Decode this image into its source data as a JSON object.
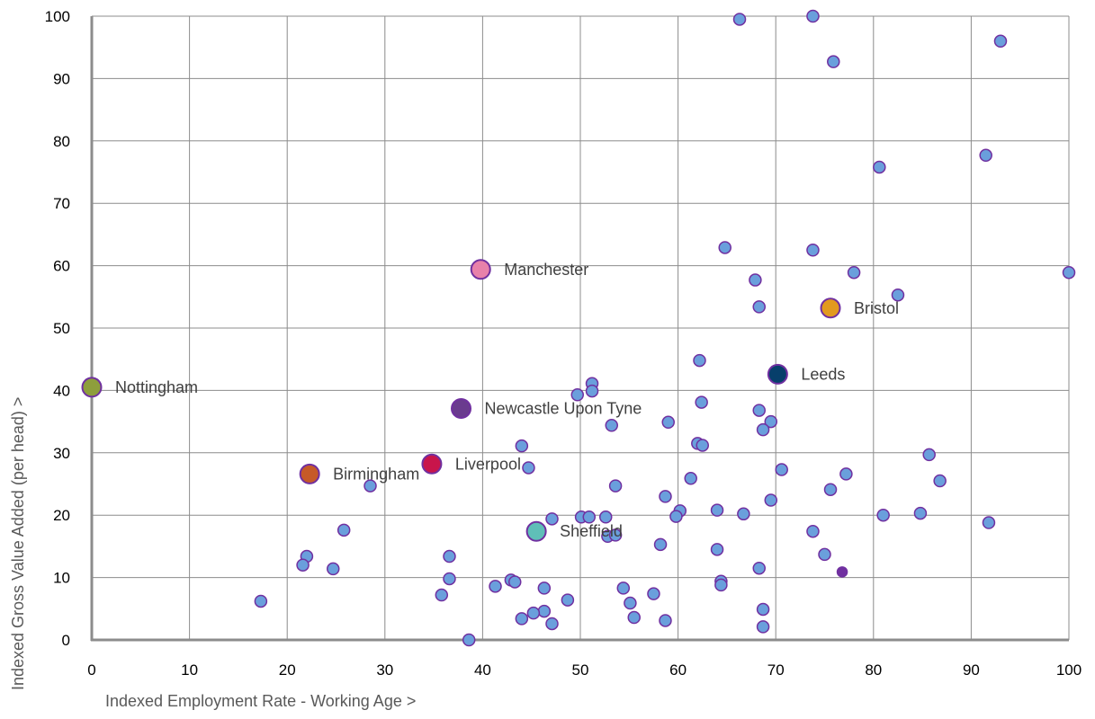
{
  "chart_data": {
    "type": "scatter",
    "xlabel": "Indexed Employment Rate - Working Age >",
    "ylabel": "Indexed Gross Value Added (per head) >",
    "xlim": [
      0,
      100
    ],
    "ylim": [
      0,
      100
    ],
    "xticks": [
      0,
      10,
      20,
      30,
      40,
      50,
      60,
      70,
      80,
      90,
      100
    ],
    "yticks": [
      0,
      10,
      20,
      30,
      40,
      50,
      60,
      70,
      80,
      90,
      100
    ],
    "grid": true,
    "default_point_color": "#6a9fdc",
    "default_point_edge_color": "#7030a0",
    "points": [
      {
        "x": 66.3,
        "y": 99.5
      },
      {
        "x": 73.8,
        "y": 100
      },
      {
        "x": 93.0,
        "y": 96.0
      },
      {
        "x": 75.9,
        "y": 92.7
      },
      {
        "x": 80.6,
        "y": 75.8
      },
      {
        "x": 91.5,
        "y": 77.7
      },
      {
        "x": 64.8,
        "y": 62.9
      },
      {
        "x": 73.8,
        "y": 62.5
      },
      {
        "x": 78.0,
        "y": 58.9
      },
      {
        "x": 100,
        "y": 58.9
      },
      {
        "x": 67.9,
        "y": 57.7
      },
      {
        "x": 82.5,
        "y": 55.3
      },
      {
        "x": 68.3,
        "y": 53.4
      },
      {
        "x": 62.2,
        "y": 44.8
      },
      {
        "x": 51.2,
        "y": 41.1
      },
      {
        "x": 49.7,
        "y": 39.3
      },
      {
        "x": 51.2,
        "y": 39.9
      },
      {
        "x": 62.4,
        "y": 38.1
      },
      {
        "x": 68.3,
        "y": 36.8
      },
      {
        "x": 59.0,
        "y": 34.9
      },
      {
        "x": 69.5,
        "y": 35.0
      },
      {
        "x": 53.2,
        "y": 34.4
      },
      {
        "x": 68.7,
        "y": 33.7
      },
      {
        "x": 44.0,
        "y": 31.1
      },
      {
        "x": 62.0,
        "y": 31.5
      },
      {
        "x": 62.5,
        "y": 31.2
      },
      {
        "x": 85.7,
        "y": 29.7
      },
      {
        "x": 44.7,
        "y": 27.6
      },
      {
        "x": 70.6,
        "y": 27.3
      },
      {
        "x": 77.2,
        "y": 26.6
      },
      {
        "x": 61.3,
        "y": 25.9
      },
      {
        "x": 86.8,
        "y": 25.5
      },
      {
        "x": 28.5,
        "y": 24.7
      },
      {
        "x": 53.6,
        "y": 24.7
      },
      {
        "x": 75.6,
        "y": 24.1
      },
      {
        "x": 58.7,
        "y": 23.0
      },
      {
        "x": 69.5,
        "y": 22.4
      },
      {
        "x": 60.2,
        "y": 20.7
      },
      {
        "x": 64.0,
        "y": 20.8
      },
      {
        "x": 66.7,
        "y": 20.2
      },
      {
        "x": 81.0,
        "y": 20.0
      },
      {
        "x": 84.8,
        "y": 20.3
      },
      {
        "x": 59.8,
        "y": 19.8
      },
      {
        "x": 47.1,
        "y": 19.4
      },
      {
        "x": 50.1,
        "y": 19.7
      },
      {
        "x": 50.9,
        "y": 19.7
      },
      {
        "x": 52.6,
        "y": 19.7
      },
      {
        "x": 91.8,
        "y": 18.8
      },
      {
        "x": 25.8,
        "y": 17.6
      },
      {
        "x": 73.8,
        "y": 17.4
      },
      {
        "x": 52.8,
        "y": 16.6
      },
      {
        "x": 53.6,
        "y": 16.8
      },
      {
        "x": 58.2,
        "y": 15.3
      },
      {
        "x": 64.0,
        "y": 14.5
      },
      {
        "x": 75.0,
        "y": 13.7
      },
      {
        "x": 22.0,
        "y": 13.4
      },
      {
        "x": 36.6,
        "y": 13.4
      },
      {
        "x": 21.6,
        "y": 12.0
      },
      {
        "x": 24.7,
        "y": 11.4
      },
      {
        "x": 68.3,
        "y": 11.5
      },
      {
        "x": 76.8,
        "y": 10.9,
        "color": "#7030a0",
        "size": "small"
      },
      {
        "x": 36.6,
        "y": 9.8
      },
      {
        "x": 42.9,
        "y": 9.6
      },
      {
        "x": 43.3,
        "y": 9.3
      },
      {
        "x": 64.4,
        "y": 9.4
      },
      {
        "x": 64.4,
        "y": 8.8
      },
      {
        "x": 41.3,
        "y": 8.6
      },
      {
        "x": 46.3,
        "y": 8.3
      },
      {
        "x": 54.4,
        "y": 8.3
      },
      {
        "x": 57.5,
        "y": 7.4
      },
      {
        "x": 35.8,
        "y": 7.2
      },
      {
        "x": 48.7,
        "y": 6.4
      },
      {
        "x": 17.3,
        "y": 6.2
      },
      {
        "x": 55.1,
        "y": 5.9
      },
      {
        "x": 68.7,
        "y": 4.9
      },
      {
        "x": 46.3,
        "y": 4.6
      },
      {
        "x": 45.2,
        "y": 4.3
      },
      {
        "x": 44.0,
        "y": 3.4
      },
      {
        "x": 55.5,
        "y": 3.6
      },
      {
        "x": 58.7,
        "y": 3.1
      },
      {
        "x": 47.1,
        "y": 2.6
      },
      {
        "x": 68.7,
        "y": 2.1
      },
      {
        "x": 38.6,
        "y": 0
      }
    ],
    "highlighted": [
      {
        "label": "Manchester",
        "x": 39.8,
        "y": 59.4,
        "color": "#e881aa"
      },
      {
        "label": "Bristol",
        "x": 75.6,
        "y": 53.2,
        "color": "#e29a1f"
      },
      {
        "label": "Leeds",
        "x": 70.2,
        "y": 42.6,
        "color": "#073f6b"
      },
      {
        "label": "Nottingham",
        "x": 0,
        "y": 40.5,
        "color": "#8e9e3c"
      },
      {
        "label": "Newcastle Upon Tyne",
        "x": 37.8,
        "y": 37.1,
        "color": "#6a3b8e"
      },
      {
        "label": "Birmingham",
        "x": 22.3,
        "y": 26.6,
        "color": "#c65a28"
      },
      {
        "label": "Liverpool",
        "x": 34.8,
        "y": 28.2,
        "color": "#c8154b"
      },
      {
        "label": "Sheffield",
        "x": 45.5,
        "y": 17.4,
        "color": "#5fbfb8"
      }
    ]
  }
}
